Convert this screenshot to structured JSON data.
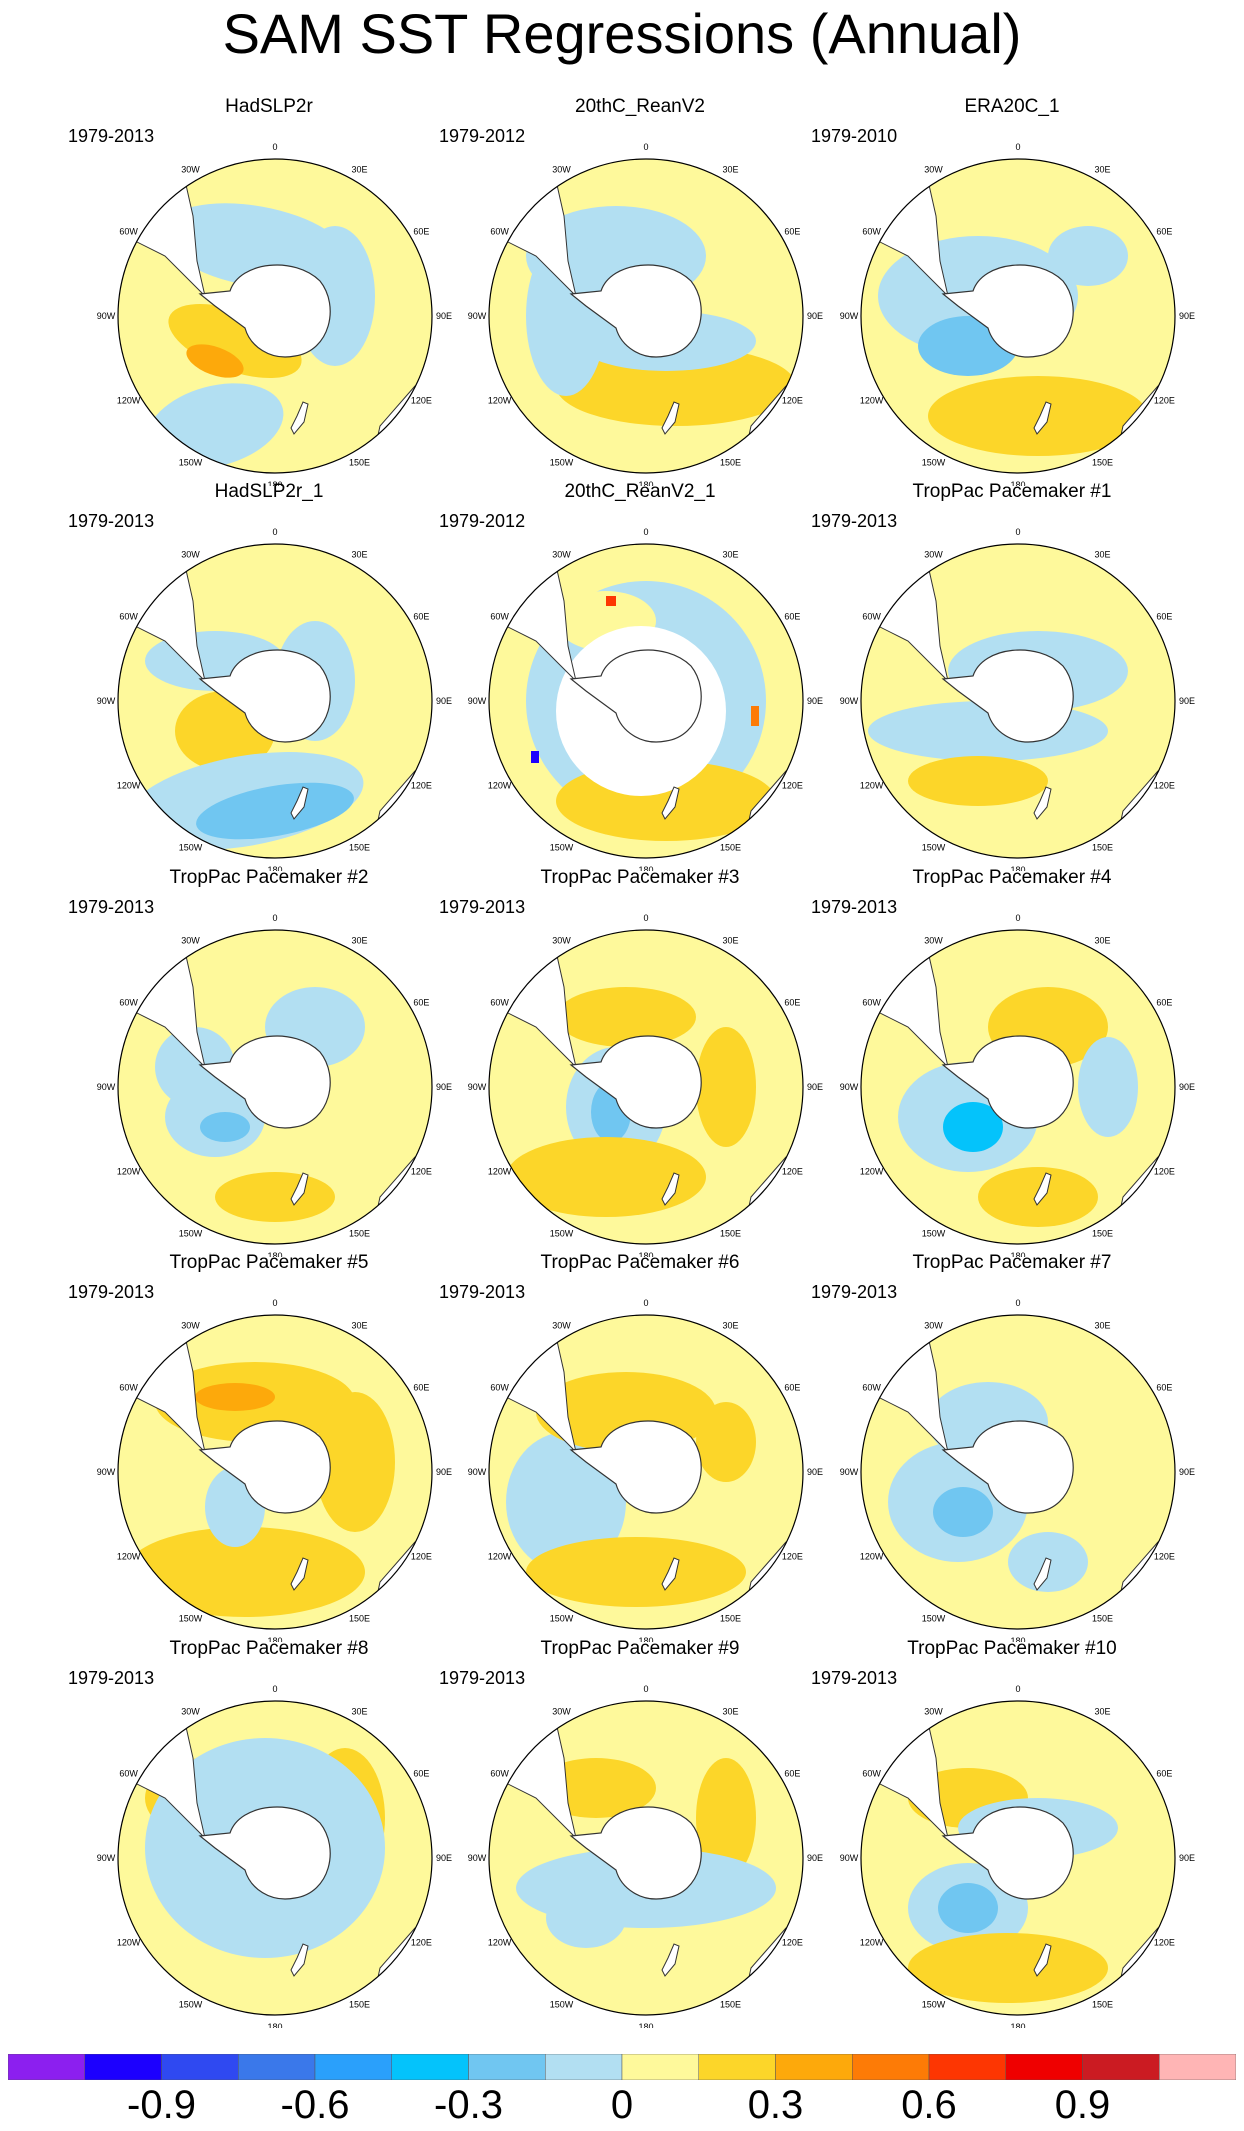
{
  "title": "SAM SST Regressions (Annual)",
  "chart_data": {
    "type": "polar-contour-map-grid",
    "projection": "south polar stereographic",
    "longitude_labels": [
      "0",
      "30E",
      "60E",
      "90E",
      "120E",
      "150E",
      "180",
      "150W",
      "120W",
      "90W",
      "60W",
      "30W"
    ],
    "panels": [
      {
        "title": "HadSLP2r",
        "period": "1979-2013"
      },
      {
        "title": "20thC_ReanV2",
        "period": "1979-2012"
      },
      {
        "title": "ERA20C_1",
        "period": "1979-2010"
      },
      {
        "title": "HadSLP2r_1",
        "period": "1979-2013"
      },
      {
        "title": "20thC_ReanV2_1",
        "period": "1979-2012"
      },
      {
        "title": "TropPac Pacemaker #1",
        "period": "1979-2013"
      },
      {
        "title": "TropPac Pacemaker #2",
        "period": "1979-2013"
      },
      {
        "title": "TropPac Pacemaker #3",
        "period": "1979-2013"
      },
      {
        "title": "TropPac Pacemaker #4",
        "period": "1979-2013"
      },
      {
        "title": "TropPac Pacemaker #5",
        "period": "1979-2013"
      },
      {
        "title": "TropPac Pacemaker #6",
        "period": "1979-2013"
      },
      {
        "title": "TropPac Pacemaker #7",
        "period": "1979-2013"
      },
      {
        "title": "TropPac Pacemaker #8",
        "period": "1979-2013"
      },
      {
        "title": "TropPac Pacemaker #9",
        "period": "1979-2013"
      },
      {
        "title": "TropPac Pacemaker #10",
        "period": "1979-2013"
      }
    ],
    "colorbar": {
      "levels": [
        -1.05,
        -0.9,
        -0.75,
        -0.6,
        -0.45,
        -0.3,
        -0.15,
        0,
        0.15,
        0.3,
        0.45,
        0.6,
        0.75,
        0.9,
        1.05
      ],
      "colors": [
        "#8c1fef",
        "#1c00fe",
        "#2f49f1",
        "#3a78ea",
        "#2aa0fb",
        "#04c3fb",
        "#70c6f1",
        "#b2dff2",
        "#fef99b",
        "#fcd629",
        "#fda90b",
        "#fd7b06",
        "#fd3602",
        "#ef0000",
        "#cb1b22",
        "#ffb5b5"
      ],
      "tick_labels": [
        "-0.9",
        "-0.6",
        "-0.3",
        "0",
        "0.3",
        "0.6",
        "0.9"
      ],
      "tick_values": [
        -0.9,
        -0.6,
        -0.3,
        0,
        0.3,
        0.6,
        0.9
      ]
    }
  }
}
